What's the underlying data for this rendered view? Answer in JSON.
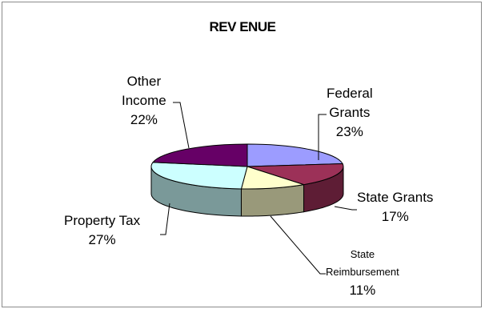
{
  "chart_data": {
    "type": "pie",
    "style": "3d-exploded-none",
    "title": "REV ENUE",
    "slices": [
      {
        "label": "Federal Grants",
        "value": 23,
        "value_label": "23%",
        "color": "#9c9cff"
      },
      {
        "label": "State Grants",
        "value": 17,
        "value_label": "17%",
        "color": "#9c3158"
      },
      {
        "label": "State Reimbursement",
        "value": 11,
        "value_label": "11%",
        "color": "#ffffcc"
      },
      {
        "label": "Property Tax",
        "value": 27,
        "value_label": "27%",
        "color": "#ccffff"
      },
      {
        "label": "Other Income",
        "value": 22,
        "value_label": "22%",
        "color": "#660066"
      }
    ],
    "legend": "none",
    "label_lines": true
  },
  "labels": {
    "federal_line1": "Federal",
    "federal_line2": "Grants",
    "federal_pct": "23%",
    "state_grants_line1": "State Grants",
    "state_grants_pct": "17%",
    "reimb_line1": "State",
    "reimb_line2": "Reimbursement",
    "reimb_pct": "11%",
    "property_line1": "Property Tax",
    "property_pct": "27%",
    "other_line1": "Other",
    "other_line2": "Income",
    "other_pct": "22%"
  }
}
